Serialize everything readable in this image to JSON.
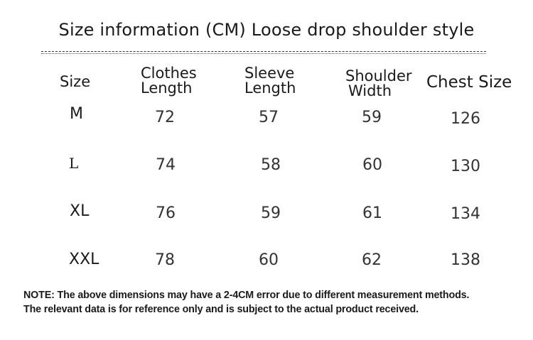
{
  "title": "Size information (CM) Loose drop shoulder style",
  "headers": {
    "size": "Size",
    "clothes_length": [
      "Clothes",
      "Length"
    ],
    "sleeve_length": [
      "Sleeve",
      "Length"
    ],
    "shoulder_width": [
      "Shoulder",
      "Width"
    ],
    "chest_size": "Chest Size"
  },
  "rows": [
    {
      "size": "M",
      "clothes_length": "72",
      "sleeve_length": "57",
      "shoulder_width": "59",
      "chest_size": "126"
    },
    {
      "size": "L",
      "clothes_length": "74",
      "sleeve_length": "58",
      "shoulder_width": "60",
      "chest_size": "130"
    },
    {
      "size": "XL",
      "clothes_length": "76",
      "sleeve_length": "59",
      "shoulder_width": "61",
      "chest_size": "134"
    },
    {
      "size": "XXL",
      "clothes_length": "78",
      "sleeve_length": "60",
      "shoulder_width": "62",
      "chest_size": "138"
    }
  ],
  "note": {
    "line1": "NOTE: The above dimensions may have a 2-4CM error due to different measurement methods.",
    "line2": "The relevant data is for reference only and is subject to the actual product received."
  }
}
